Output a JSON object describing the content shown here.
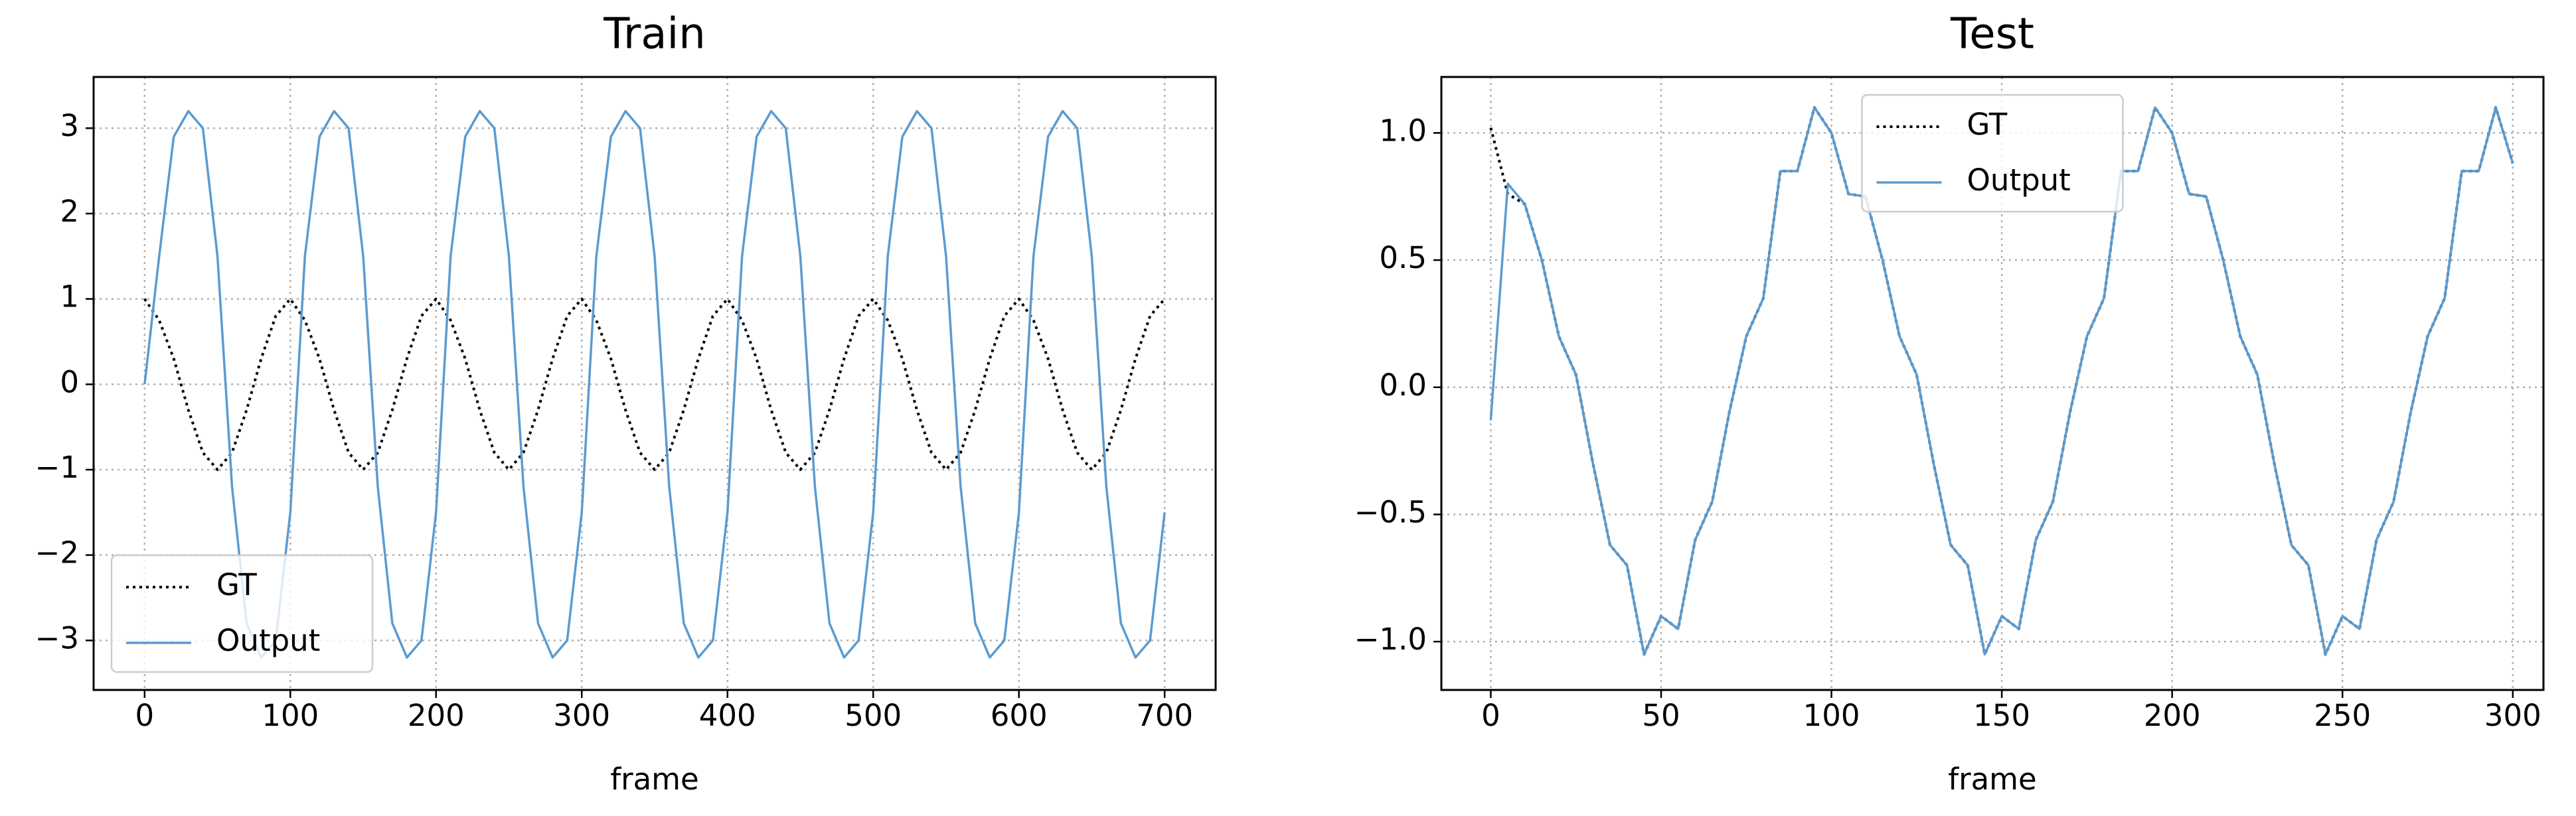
{
  "chart_data": [
    {
      "type": "line",
      "title": "Train",
      "xlabel": "frame",
      "x": [
        0,
        10,
        20,
        30,
        40,
        50,
        60,
        70,
        80,
        90,
        100,
        110,
        120,
        130,
        140,
        150,
        160,
        170,
        180,
        190,
        200,
        210,
        220,
        230,
        240,
        250,
        260,
        270,
        280,
        290,
        300,
        310,
        320,
        330,
        340,
        350,
        360,
        370,
        380,
        390,
        400,
        410,
        420,
        430,
        440,
        450,
        460,
        470,
        480,
        490,
        500,
        510,
        520,
        530,
        540,
        550,
        560,
        570,
        580,
        590,
        600,
        610,
        620,
        630,
        640,
        650,
        660,
        670,
        680,
        690,
        700
      ],
      "series": [
        {
          "name": "GT",
          "color": "#000000",
          "dash": "dotted",
          "values": [
            1,
            0.75,
            0.3,
            -0.3,
            -0.8,
            -1.0,
            -0.8,
            -0.3,
            0.3,
            0.8,
            1,
            0.75,
            0.3,
            -0.3,
            -0.8,
            -1.0,
            -0.8,
            -0.3,
            0.3,
            0.8,
            1,
            0.75,
            0.3,
            -0.3,
            -0.8,
            -1.0,
            -0.8,
            -0.3,
            0.3,
            0.8,
            1,
            0.75,
            0.3,
            -0.3,
            -0.8,
            -1.0,
            -0.8,
            -0.3,
            0.3,
            0.8,
            1,
            0.75,
            0.3,
            -0.3,
            -0.8,
            -1.0,
            -0.8,
            -0.3,
            0.3,
            0.8,
            1,
            0.75,
            0.3,
            -0.3,
            -0.8,
            -1.0,
            -0.8,
            -0.3,
            0.3,
            0.8,
            1,
            0.75,
            0.3,
            -0.3,
            -0.8,
            -1.0,
            -0.8,
            -0.3,
            0.3,
            0.8,
            1.0
          ]
        },
        {
          "name": "Output",
          "color": "#5b9bd0",
          "dash": "solid",
          "values": [
            0,
            1.5,
            2.9,
            3.2,
            3.0,
            1.5,
            -1.2,
            -2.8,
            -3.2,
            -3.0,
            -1.5,
            1.5,
            2.9,
            3.2,
            3.0,
            1.5,
            -1.2,
            -2.8,
            -3.2,
            -3.0,
            -1.5,
            1.5,
            2.9,
            3.2,
            3.0,
            1.5,
            -1.2,
            -2.8,
            -3.2,
            -3.0,
            -1.5,
            1.5,
            2.9,
            3.2,
            3.0,
            1.5,
            -1.2,
            -2.8,
            -3.2,
            -3.0,
            -1.5,
            1.5,
            2.9,
            3.2,
            3.0,
            1.5,
            -1.2,
            -2.8,
            -3.2,
            -3.0,
            -1.5,
            1.5,
            2.9,
            3.2,
            3.0,
            1.5,
            -1.2,
            -2.8,
            -3.2,
            -3.0,
            -1.5,
            1.5,
            2.9,
            3.2,
            3.0,
            1.5,
            -1.2,
            -2.8,
            -3.2,
            -3.0,
            -1.5
          ]
        }
      ],
      "xlim": [
        -35,
        735
      ],
      "ylim": [
        -3.58,
        3.6
      ],
      "xticks": [
        0,
        100,
        200,
        300,
        400,
        500,
        600,
        700
      ],
      "yticks": [
        {
          "value": -3,
          "label": "−3"
        },
        {
          "value": -2,
          "label": "−2"
        },
        {
          "value": -1,
          "label": "−1"
        },
        0,
        1,
        2,
        3
      ],
      "grid": true,
      "legend": "lower left"
    },
    {
      "type": "line",
      "title": "Test",
      "xlabel": "frame",
      "x": [
        0,
        5,
        10,
        15,
        20,
        25,
        30,
        35,
        40,
        45,
        50,
        55,
        60,
        65,
        70,
        75,
        80,
        85,
        90,
        95,
        100,
        105,
        110,
        115,
        120,
        125,
        130,
        135,
        140,
        145,
        150,
        155,
        160,
        165,
        170,
        175,
        180,
        185,
        190,
        195,
        200,
        205,
        210,
        215,
        220,
        225,
        230,
        235,
        240,
        245,
        250,
        255,
        260,
        265,
        270,
        275,
        280,
        285,
        290,
        295,
        300
      ],
      "series": [
        {
          "name": "GT",
          "color": "#000000",
          "dash": "dotted",
          "values": [
            1.02,
            0.76,
            0.72,
            0.5,
            0.2,
            0.05,
            -0.3,
            -0.62,
            -0.7,
            -1.05,
            -0.9,
            -0.95,
            -0.6,
            -0.45,
            -0.1,
            0.2,
            0.35,
            0.85,
            0.85,
            1.1,
            1.0,
            0.76,
            0.75,
            0.5,
            0.2,
            0.05,
            -0.3,
            -0.62,
            -0.7,
            -1.05,
            -0.9,
            -0.95,
            -0.6,
            -0.45,
            -0.1,
            0.2,
            0.35,
            0.85,
            0.85,
            1.1,
            1.0,
            0.76,
            0.75,
            0.5,
            0.2,
            0.05,
            -0.3,
            -0.62,
            -0.7,
            -1.05,
            -0.9,
            -0.95,
            -0.6,
            -0.45,
            -0.1,
            0.2,
            0.35,
            0.85,
            0.85,
            1.1,
            0.88
          ]
        },
        {
          "name": "Output",
          "color": "#5b9bd0",
          "dash": "solid",
          "values": [
            -0.13,
            0.8,
            0.72,
            0.5,
            0.2,
            0.05,
            -0.3,
            -0.62,
            -0.7,
            -1.05,
            -0.9,
            -0.95,
            -0.6,
            -0.45,
            -0.1,
            0.2,
            0.35,
            0.85,
            0.85,
            1.1,
            1.0,
            0.76,
            0.75,
            0.5,
            0.2,
            0.05,
            -0.3,
            -0.62,
            -0.7,
            -1.05,
            -0.9,
            -0.95,
            -0.6,
            -0.45,
            -0.1,
            0.2,
            0.35,
            0.85,
            0.85,
            1.1,
            1.0,
            0.76,
            0.75,
            0.5,
            0.2,
            0.05,
            -0.3,
            -0.62,
            -0.7,
            -1.05,
            -0.9,
            -0.95,
            -0.6,
            -0.45,
            -0.1,
            0.2,
            0.35,
            0.85,
            0.85,
            1.1,
            0.88
          ]
        }
      ],
      "xlim": [
        -14.5,
        309
      ],
      "ylim": [
        -1.19,
        1.22
      ],
      "xticks": [
        0,
        50,
        100,
        150,
        200,
        250,
        300
      ],
      "yticks": [
        {
          "value": -1.0,
          "label": "−1.0"
        },
        {
          "value": -0.5,
          "label": "−0.5"
        },
        {
          "value": 0,
          "label": "0.0"
        },
        0.5,
        {
          "value": 1.0,
          "label": "1.0"
        }
      ],
      "grid": true,
      "legend": "upper center"
    }
  ]
}
